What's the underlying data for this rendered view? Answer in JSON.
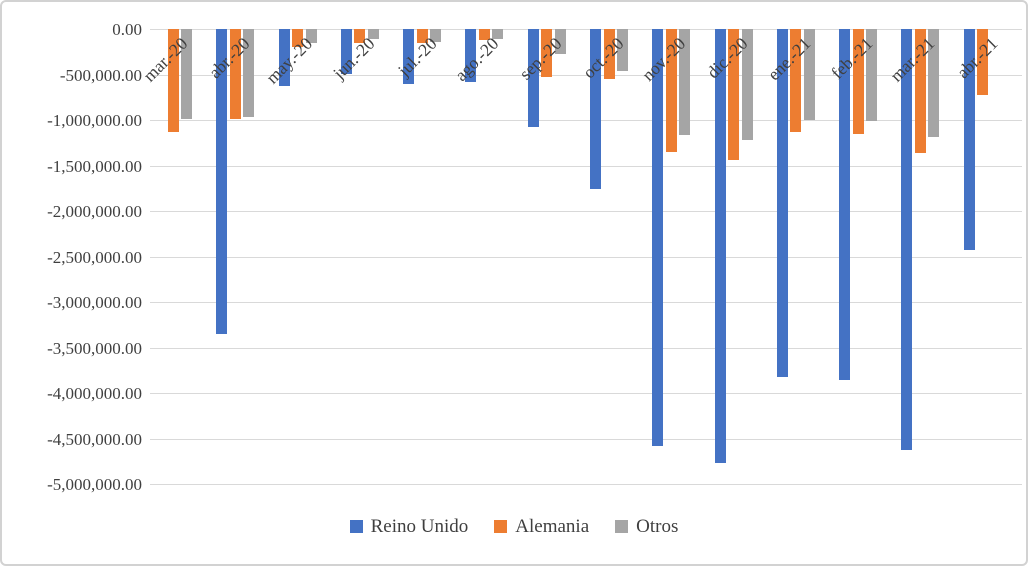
{
  "chart_data": {
    "type": "bar",
    "title": "",
    "xlabel": "",
    "ylabel": "",
    "orientation": "vertical-negative",
    "grid": true,
    "legend_position": "bottom",
    "axis_label_rotation_deg": 45,
    "ylim": [
      -5000000,
      0
    ],
    "y_tick_step": 500000,
    "y_tick_labels": [
      "0.00",
      "-500,000.00",
      "-1,000,000.00",
      "-1,500,000.00",
      "-2,000,000.00",
      "-2,500,000.00",
      "-3,000,000.00",
      "-3,500,000.00",
      "-4,000,000.00",
      "-4,500,000.00",
      "-5,000,000.00"
    ],
    "categories": [
      "mar.-20",
      "abr.-20",
      "may.-20",
      "jun.-20",
      "jul.-20",
      "ago.-20",
      "sep.-20",
      "oct.-20",
      "nov.-20",
      "dic.-20",
      "ene.-21",
      "feb.-21",
      "mar.-21",
      "abr.-21"
    ],
    "series": [
      {
        "name": "Reino Unido",
        "color": "#4472C4",
        "values": [
          0,
          -3350000,
          -630000,
          -490000,
          -600000,
          -580000,
          -1080000,
          -1760000,
          -4580000,
          -4770000,
          -3820000,
          -3860000,
          -4630000,
          -2430000
        ]
      },
      {
        "name": "Alemania",
        "color": "#ED7D31",
        "values": [
          -1130000,
          -990000,
          -200000,
          -150000,
          -150000,
          -125000,
          -530000,
          -545000,
          -1350000,
          -1440000,
          -1130000,
          -1150000,
          -1360000,
          -730000
        ]
      },
      {
        "name": "Otros",
        "color": "#A5A5A5",
        "values": [
          -990000,
          -970000,
          -150000,
          -110000,
          -145000,
          -115000,
          -270000,
          -465000,
          -1170000,
          -1220000,
          -1000000,
          -1010000,
          -1190000,
          0
        ]
      }
    ]
  },
  "colors": {
    "gridline": "#d9d9d9",
    "axis_text": "#3f3f3f",
    "frame_border": "#d2d2d2",
    "background": "#ffffff"
  }
}
